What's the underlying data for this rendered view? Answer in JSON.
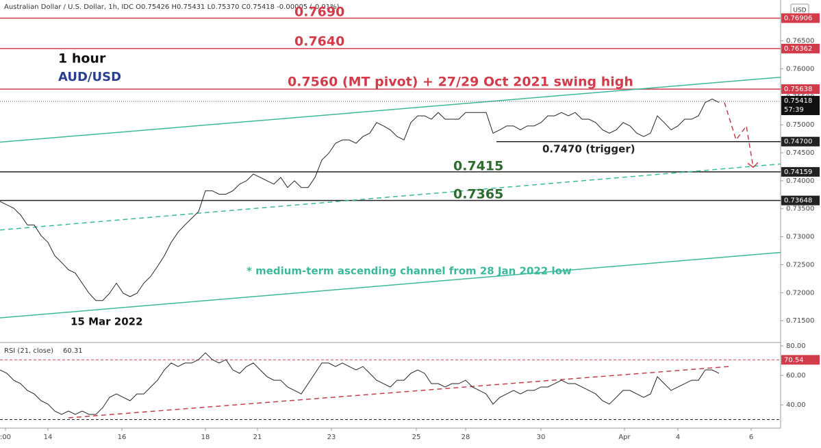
{
  "chart_data": [
    {
      "type": "line",
      "header": "Australian Dollar / U.S. Dollar, 1h, IDC  O0.75426 H0.75431 L0.75370 C0.75418 -0.00005 (-0.01%)",
      "currency": "USD",
      "countdown": "57:39",
      "color": "#222222",
      "values": [
        0.7363,
        0.7357,
        0.7351,
        0.7339,
        0.7321,
        0.7321,
        0.7302,
        0.729,
        0.7266,
        0.7254,
        0.7241,
        0.7235,
        0.7217,
        0.7199,
        0.7186,
        0.7186,
        0.7199,
        0.7217,
        0.7199,
        0.7193,
        0.7199,
        0.7217,
        0.7229,
        0.7247,
        0.7266,
        0.729,
        0.7308,
        0.7321,
        0.7333,
        0.7345,
        0.7382,
        0.7382,
        0.7376,
        0.7376,
        0.7382,
        0.7394,
        0.74,
        0.7412,
        0.7406,
        0.74,
        0.7394,
        0.7406,
        0.7388,
        0.74,
        0.7388,
        0.7388,
        0.7406,
        0.7437,
        0.7449,
        0.7467,
        0.7473,
        0.7473,
        0.7467,
        0.7479,
        0.7485,
        0.7504,
        0.7498,
        0.7491,
        0.7479,
        0.7473,
        0.7504,
        0.7516,
        0.7516,
        0.751,
        0.7522,
        0.751,
        0.751,
        0.751,
        0.7522,
        0.7522,
        0.7522,
        0.7522,
        0.7485,
        0.7491,
        0.7498,
        0.7498,
        0.7491,
        0.7498,
        0.7498,
        0.7504,
        0.7516,
        0.7516,
        0.7522,
        0.7516,
        0.7522,
        0.751,
        0.751,
        0.7504,
        0.7491,
        0.7485,
        0.7491,
        0.7504,
        0.7498,
        0.7485,
        0.7479,
        0.7485,
        0.7516,
        0.7504,
        0.7491,
        0.7498,
        0.751,
        0.751,
        0.7516,
        0.754,
        0.7546,
        0.754
      ],
      "xlim": [
        0,
        114
      ],
      "xticks": [
        {
          "value": 0.8,
          "label": ":00"
        },
        {
          "value": 7,
          "label": "14"
        },
        {
          "value": 17.8,
          "label": "16"
        },
        {
          "value": 30,
          "label": "18"
        },
        {
          "value": 37.6,
          "label": "21"
        },
        {
          "value": 48.4,
          "label": "23"
        },
        {
          "value": 60.8,
          "label": "25"
        },
        {
          "value": 68,
          "label": "28"
        },
        {
          "value": 79,
          "label": "30"
        },
        {
          "value": 91.2,
          "label": "Apr"
        },
        {
          "value": 99,
          "label": "4"
        },
        {
          "value": 109.7,
          "label": "6"
        }
      ],
      "ylim": [
        0.7111,
        0.7723
      ],
      "yticks": [
        {
          "value": 0.765,
          "label": "0.76500"
        },
        {
          "value": 0.76,
          "label": "0.76000"
        },
        {
          "value": 0.755,
          "label": "0.75500"
        },
        {
          "value": 0.75,
          "label": "0.75000"
        },
        {
          "value": 0.745,
          "label": "0.74500"
        },
        {
          "value": 0.74,
          "label": "0.74000"
        },
        {
          "value": 0.735,
          "label": "0.73500"
        },
        {
          "value": 0.73,
          "label": "0.73000"
        },
        {
          "value": 0.725,
          "label": "0.72500"
        },
        {
          "value": 0.72,
          "label": "0.72000"
        },
        {
          "value": 0.715,
          "label": "0.71500"
        }
      ],
      "current_price": {
        "value": 0.75418,
        "label": "0.75418"
      },
      "levels": [
        {
          "value": 0.76906,
          "label": "0.76906",
          "color": "#d23c4a"
        },
        {
          "value": 0.76362,
          "label": "0.76362",
          "color": "#d23c4a"
        },
        {
          "value": 0.75638,
          "label": "0.75638",
          "color": "#d23c4a"
        },
        {
          "value": 0.747,
          "label": "0.74700",
          "color": "#222222"
        },
        {
          "value": 0.74159,
          "label": "0.74159",
          "color": "#222222"
        },
        {
          "value": 0.73648,
          "label": "0.73648",
          "color": "#222222"
        }
      ],
      "trendlines": [
        {
          "x": [
            0,
            114
          ],
          "values": [
            0.7469,
            0.7585
          ],
          "color": "#3cb89a",
          "dashed": false
        },
        {
          "x": [
            0,
            114
          ],
          "values": [
            0.7312,
            0.743
          ],
          "color": "#3cb89a",
          "dashed": true
        },
        {
          "x": [
            0,
            114
          ],
          "values": [
            0.7155,
            0.7272
          ],
          "color": "#3cb89a",
          "dashed": false
        },
        {
          "x": [
            105.8,
            107.5,
            109,
            110
          ],
          "values": [
            0.754,
            0.7473,
            0.7498,
            0.7424
          ],
          "color": "#c0404a",
          "dashed": true
        }
      ],
      "annotations": [
        {
          "text": "0.7690",
          "color": "#d23c4a"
        },
        {
          "text": "0.7640",
          "color": "#d23c4a"
        },
        {
          "text": "0.7560 (MT pivot) + 27/29 Oct 2021 swing high",
          "color": "#d23c4a"
        },
        {
          "text": "0.7470 (trigger)",
          "color": "#222222"
        },
        {
          "text": "0.7415",
          "color": "#2e6b2e"
        },
        {
          "text": "0.7365",
          "color": "#2e6b2e"
        },
        {
          "text": "1 hour",
          "color": "#111111"
        },
        {
          "text": "AUD/USD",
          "color": "#2a3f8f"
        },
        {
          "text": "* medium-term ascending channel from 28 Jan 2022 low",
          "color": "#3cb89a"
        },
        {
          "text": "15 Mar 2022",
          "color": "#111111"
        }
      ]
    },
    {
      "type": "line",
      "title": "RSI (21, close)",
      "last_value": 60.31,
      "color": "#222222",
      "values": [
        63.7,
        61.4,
        56.7,
        54.4,
        49.8,
        47.4,
        42.8,
        40.5,
        35.8,
        33.5,
        35.8,
        33.5,
        35.8,
        33.5,
        33.5,
        38.1,
        45.1,
        47.4,
        45.1,
        42.8,
        47.4,
        47.4,
        52.1,
        56.7,
        63.7,
        68.4,
        66.0,
        68.4,
        68.4,
        70.7,
        75.3,
        70.7,
        68.4,
        70.7,
        63.7,
        61.4,
        66.0,
        68.4,
        63.7,
        59.1,
        56.7,
        56.7,
        52.1,
        49.8,
        47.4,
        54.4,
        61.4,
        68.4,
        68.4,
        66.0,
        68.4,
        66.0,
        63.7,
        66.0,
        61.4,
        56.7,
        54.4,
        52.1,
        56.7,
        56.7,
        61.4,
        63.7,
        61.4,
        54.4,
        54.4,
        52.1,
        54.4,
        54.4,
        56.7,
        52.1,
        49.8,
        47.4,
        40.5,
        45.1,
        47.4,
        49.8,
        47.4,
        49.8,
        49.8,
        52.1,
        52.1,
        54.4,
        56.7,
        54.4,
        54.4,
        52.1,
        49.8,
        47.4,
        42.8,
        40.5,
        45.1,
        49.8,
        49.8,
        47.4,
        45.1,
        47.4,
        59.1,
        54.4,
        49.8,
        52.1,
        54.4,
        56.7,
        56.7,
        63.7,
        63.7,
        61.4
      ],
      "ylim": [
        24.2,
        82.3
      ],
      "yticks": [
        {
          "value": 80,
          "label": "80.00"
        },
        {
          "value": 60,
          "label": "60.00"
        },
        {
          "value": 40,
          "label": "40.00"
        }
      ],
      "levels": [
        {
          "value": 70.54,
          "label": 70.54,
          "color": "#d23c4a"
        },
        {
          "value": 30,
          "color": "#222222"
        }
      ],
      "trendlines": [
        {
          "x": [
            10,
            106.5
          ],
          "values": [
            31.2,
            66.0
          ],
          "color": "#c0404a",
          "dashed": true
        }
      ]
    }
  ]
}
